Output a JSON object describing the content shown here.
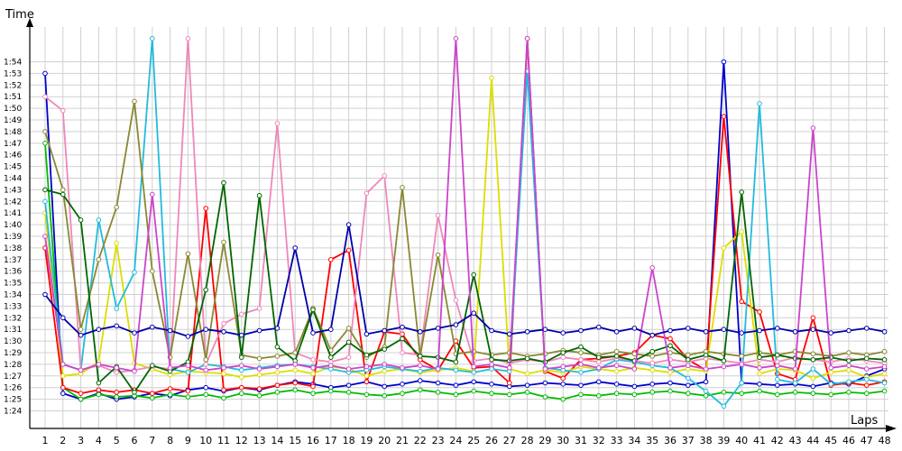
{
  "chart_data": {
    "type": "line",
    "title": "",
    "xlabel": "Laps",
    "ylabel": "Time",
    "grid": true,
    "legend": "none",
    "xlim": [
      1,
      48
    ],
    "ylim": [
      83.0,
      116.0
    ],
    "x_ticks": [
      "1",
      "2",
      "3",
      "4",
      "5",
      "6",
      "7",
      "8",
      "9",
      "10",
      "11",
      "12",
      "13",
      "14",
      "15",
      "16",
      "17",
      "18",
      "19",
      "20",
      "21",
      "22",
      "23",
      "24",
      "25",
      "26",
      "27",
      "28",
      "29",
      "30",
      "31",
      "32",
      "33",
      "34",
      "35",
      "36",
      "37",
      "38",
      "39",
      "40",
      "41",
      "42",
      "43",
      "44",
      "45",
      "46",
      "47",
      "48"
    ],
    "y_ticks": [
      "1:24",
      "1:25",
      "1:26",
      "1:27",
      "1:28",
      "1:29",
      "1:30",
      "1:31",
      "1:32",
      "1:33",
      "1:34",
      "1:35",
      "1:36",
      "1:37",
      "1:38",
      "1:39",
      "1:40",
      "1:41",
      "1:42",
      "1:43",
      "1:44",
      "1:45",
      "1:46",
      "1:47",
      "1:48",
      "1:49",
      "1:50",
      "1:51",
      "1:52",
      "1:53",
      "1:54"
    ],
    "series": [
      {
        "color": "#0000cc",
        "values": [
          113,
          85.5,
          85,
          85.5,
          85,
          85.2,
          85.5,
          85.3,
          85.8,
          86,
          85.7,
          86,
          85.8,
          86.2,
          86.5,
          86.3,
          86,
          86.2,
          86.5,
          86.1,
          86.3,
          86.6,
          86.4,
          86.2,
          86.5,
          86.3,
          86.1,
          86.2,
          86.4,
          86.3,
          86.2,
          86.5,
          86.3,
          86.1,
          86.3,
          86.4,
          86.2,
          86.5,
          114,
          86.4,
          86.3,
          86.2,
          86.3,
          86.1,
          86.4,
          86.3,
          87,
          87.6
        ]
      },
      {
        "color": "#00bb00",
        "values": [
          107,
          86,
          85,
          85.4,
          85.2,
          85.3,
          85.1,
          85.4,
          85.2,
          85.4,
          85.1,
          85.5,
          85.3,
          85.6,
          85.8,
          85.5,
          85.7,
          85.6,
          85.4,
          85.3,
          85.5,
          85.8,
          85.6,
          85.4,
          85.7,
          85.5,
          85.4,
          85.6,
          85.2,
          85,
          85.4,
          85.3,
          85.5,
          85.4,
          85.6,
          85.7,
          85.5,
          85.3,
          85.6,
          85.5,
          85.7,
          85.4,
          85.6,
          85.5,
          85.4,
          85.6,
          85.5,
          85.7
        ]
      },
      {
        "color": "#ff0000",
        "values": [
          98,
          86,
          85.5,
          85.8,
          85.6,
          85.8,
          85.5,
          85.9,
          85.7,
          101.4,
          85.8,
          86,
          85.9,
          86.2,
          86.4,
          86.1,
          97,
          97.8,
          86.5,
          90.8,
          90.6,
          88.4,
          87.5,
          90,
          87.7,
          87.8,
          86.4,
          116,
          87.4,
          86.8,
          88.4,
          88.5,
          88.7,
          89,
          90.5,
          90.2,
          88.4,
          87.5,
          109.3,
          93.4,
          92.5,
          87.2,
          86.7,
          92,
          86.2,
          86.4,
          86.2,
          86.5
        ]
      },
      {
        "color": "#dddd00",
        "values": [
          101,
          87,
          87.2,
          88.2,
          98.4,
          88.1,
          87.6,
          87.1,
          87.4,
          87.3,
          87.2,
          86.9,
          87.1,
          87.3,
          87.5,
          87.2,
          87.8,
          87.6,
          87,
          87.4,
          87.6,
          87.3,
          87.5,
          87.7,
          87.4,
          112.6,
          87.6,
          87.2,
          87.5,
          87.3,
          87.8,
          87.6,
          87.4,
          87.7,
          87.5,
          87.3,
          87.6,
          87.4,
          98,
          99.4,
          87.2,
          87.6,
          87.5,
          86.8,
          87.3,
          87.5,
          86.9,
          87.2
        ]
      },
      {
        "color": "#22bbdd",
        "values": [
          102,
          88,
          87.5,
          100.4,
          92.8,
          95.9,
          116,
          87.6,
          87.3,
          88,
          87.8,
          87.5,
          87.7,
          87.9,
          88,
          87.8,
          87.6,
          87.3,
          87.5,
          87.8,
          87.6,
          87.4,
          87.7,
          87.5,
          87.3,
          87.6,
          87.4,
          113.2,
          87.7,
          87.5,
          87.3,
          87.6,
          88.4,
          88.2,
          87.9,
          87.7,
          86.8,
          85.7,
          84.4,
          86.4,
          110.4,
          86.7,
          86.4,
          87.6,
          86.3,
          86.5,
          86.7,
          86.4
        ]
      },
      {
        "color": "#ee88bb",
        "values": [
          111,
          109.8,
          87.5,
          87.9,
          87.3,
          87.5,
          87.8,
          87.6,
          116,
          88,
          91.5,
          92.3,
          92.8,
          108.7,
          89,
          88.4,
          88.2,
          88.6,
          102.7,
          104.2,
          89,
          88.8,
          100.8,
          93.5,
          88.3,
          88.5,
          88.1,
          88.4,
          88.2,
          88.6,
          88.4,
          88.2,
          88.5,
          88.3,
          88.1,
          88.4,
          88.2,
          88.5,
          88.3,
          88.1,
          88.4,
          88.2,
          88.6,
          88.4,
          88.2,
          88.5,
          88.3,
          88.1
        ]
      },
      {
        "color": "#888833",
        "values": [
          108,
          103,
          91,
          97,
          101.5,
          110.6,
          96,
          88.6,
          97.5,
          88.4,
          98.5,
          88.8,
          88.5,
          88.7,
          89,
          92.8,
          89.2,
          91.1,
          88.6,
          89.5,
          103.2,
          88.7,
          97.4,
          88.9,
          89.1,
          88.8,
          89,
          88.7,
          88.9,
          89.2,
          89,
          88.8,
          89.1,
          88.9,
          88.7,
          89,
          88.8,
          89.1,
          88.9,
          88.7,
          89,
          88.8,
          89.1,
          88.9,
          88.7,
          89,
          88.8,
          89.1
        ]
      },
      {
        "color": "#006600",
        "values": [
          103,
          102.6,
          100.4,
          86.4,
          87.8,
          85.6,
          87.9,
          87.4,
          88.2,
          94.4,
          103.6,
          88.6,
          102.5,
          89.5,
          88.3,
          92.7,
          88.6,
          89.9,
          88.8,
          89.3,
          90.2,
          88.7,
          88.6,
          88.2,
          95.7,
          88.4,
          88.3,
          88.5,
          88.2,
          89,
          89.5,
          88.6,
          88.7,
          88.3,
          89.1,
          89.6,
          88.4,
          88.8,
          88.3,
          102.8,
          88.6,
          88.8,
          88.5,
          88.4,
          88.6,
          88.3,
          88.5,
          88.4
        ]
      },
      {
        "color": "#cc44cc",
        "values": [
          99,
          88,
          87.5,
          88,
          87.7,
          87.4,
          102.6,
          87.7,
          87.9,
          87.5,
          87.7,
          87.9,
          87.6,
          87.8,
          88,
          87.7,
          87.9,
          87.6,
          87.8,
          88,
          87.7,
          87.9,
          87.6,
          116,
          87.8,
          88,
          87.7,
          116,
          87.6,
          87.8,
          88,
          87.7,
          87.9,
          87.6,
          96.3,
          87.7,
          87.9,
          87.6,
          87.8,
          88,
          87.7,
          87.9,
          87.6,
          108.3,
          87.7,
          87.9,
          87.6,
          87.8
        ]
      },
      {
        "color": "#0000aa",
        "values": [
          94,
          92,
          90.5,
          91,
          91.3,
          90.7,
          91.2,
          90.9,
          90.4,
          91,
          90.8,
          90.5,
          90.9,
          91.1,
          98,
          90.7,
          91,
          100,
          90.6,
          90.9,
          91.2,
          90.8,
          91.1,
          91.4,
          92.4,
          90.9,
          90.6,
          90.8,
          91,
          90.7,
          90.9,
          91.2,
          90.8,
          91.1,
          90.5,
          90.9,
          91.1,
          90.8,
          91,
          90.7,
          90.9,
          91.1,
          90.8,
          91,
          90.7,
          90.9,
          91.1,
          90.8
        ]
      }
    ]
  }
}
